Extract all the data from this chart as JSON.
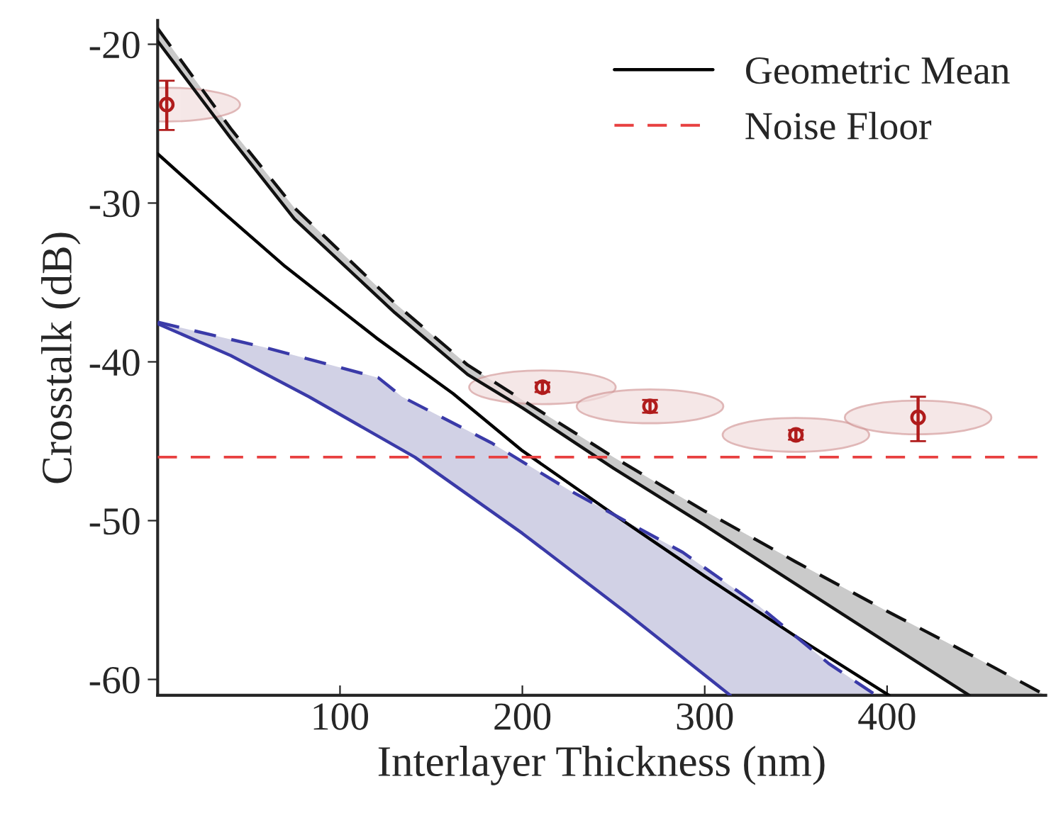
{
  "chart_data": {
    "type": "line",
    "xlabel": "Interlayer Thickness (nm)",
    "ylabel": "Crosstalk (dB)",
    "xlim": [
      0,
      487
    ],
    "ylim": [
      -61,
      -18.5
    ],
    "xticks": [
      100,
      200,
      300,
      400
    ],
    "yticks": [
      -60,
      -50,
      -40,
      -30,
      -20
    ],
    "grid": false,
    "legend": "top right",
    "series": [
      {
        "color": "#111111",
        "line_style": "dashed",
        "x": [
          0,
          40,
          75,
          130,
          170,
          200,
          250,
          300,
          350,
          400,
          445,
          487
        ],
        "values": [
          -19.0,
          -25.3,
          -30.3,
          -36.3,
          -40.2,
          -42.4,
          -46.0,
          -49.4,
          -52.6,
          -55.7,
          -58.4,
          -61
        ]
      },
      {
        "color": "#111111",
        "line_style": "solid",
        "x": [
          0,
          40,
          75,
          130,
          170,
          200,
          250,
          300,
          350,
          400,
          445
        ],
        "values": [
          -19.8,
          -25.9,
          -31.0,
          -36.9,
          -40.8,
          -42.9,
          -46.7,
          -50.3,
          -54.0,
          -57.7,
          -61
        ]
      },
      {
        "name": "Geometric Mean",
        "color": "#000000",
        "line_style": "solid",
        "x": [
          0,
          35,
          70,
          120,
          162,
          200,
          250,
          300,
          350,
          401
        ],
        "values": [
          -26.9,
          -30.5,
          -34.0,
          -38.5,
          -42.0,
          -45.6,
          -49.6,
          -53.5,
          -57.3,
          -61
        ]
      },
      {
        "color": "#3a3aa8",
        "line_style": "dashed",
        "x": [
          0,
          59,
          121,
          134,
          183,
          226,
          288,
          330,
          368,
          394
        ],
        "values": [
          -37.5,
          -39.1,
          -41.0,
          -42.2,
          -45.1,
          -48.1,
          -52.0,
          -55.4,
          -59.0,
          -61
        ]
      },
      {
        "color": "#3a3aa8",
        "line_style": "solid",
        "x": [
          0,
          40,
          83,
          141,
          200,
          257,
          314
        ],
        "values": [
          -37.6,
          -39.6,
          -42.2,
          -46.0,
          -50.8,
          -55.8,
          -61
        ]
      },
      {
        "type": "scatter",
        "color": "#b01c1c",
        "marker": "circle",
        "x": [
          5,
          211,
          270,
          350,
          417
        ],
        "values": [
          -23.8,
          -41.6,
          -42.8,
          -44.6,
          -43.5
        ],
        "errors": [
          [
            -25.4,
            -22.3
          ],
          0.3,
          0.4,
          0.3,
          [
            -45.0,
            -42.2
          ]
        ]
      }
    ],
    "ref_lines": [
      {
        "axis": "y",
        "value": -46,
        "label": "Noise Floor",
        "color": "#e84040",
        "line_style": "dashed"
      }
    ]
  }
}
